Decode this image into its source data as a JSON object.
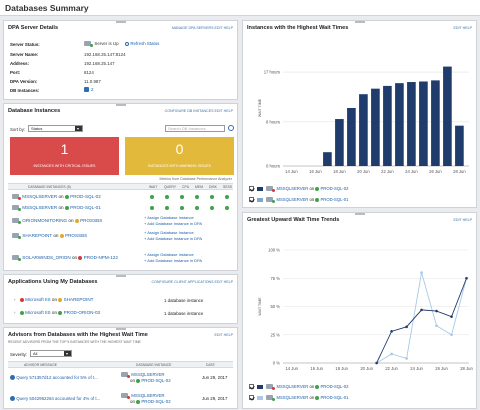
{
  "page": {
    "title": "Databases Summary"
  },
  "dpa": {
    "title": "DPA Server Details",
    "actions": "MANAGE DPA SERVERS  EDIT  HELP",
    "rows": [
      {
        "label": "Server Status:",
        "value": "Server is Up",
        "extra": "Refresh Status"
      },
      {
        "label": "Server Name:",
        "value": "192.168.25.147:8124"
      },
      {
        "label": "Address:",
        "value": "192.168.25.147"
      },
      {
        "label": "Port:",
        "value": "8124"
      },
      {
        "label": "DPA Version:",
        "value": "11.0.987"
      },
      {
        "label": "DB Instances:",
        "value": "2"
      }
    ]
  },
  "instances": {
    "title": "Database Instances",
    "actions": "CONFIGURE DB INSTANCES  EDIT  HELP",
    "sort_label": "Sort by:",
    "sort_value": "Status",
    "search_placeholder": "Search DB Instances",
    "critical": {
      "count": "1",
      "caption": "INSTANCES WITH CRITICAL ISSUES",
      "color": "#d94b4b"
    },
    "warning": {
      "count": "0",
      "caption": "INSTANCES WITH WARNING ISSUES",
      "color": "#e2b93b"
    },
    "metrics_note": "Metrics from Database Performance Analyzer",
    "columns": [
      "DATABASE INSTANCES (5)",
      "WAIT",
      "QUERY",
      "CPU",
      "MEM",
      "DISK",
      "SESS"
    ],
    "rows": [
      {
        "name": "MSSQLSERVER",
        "on": "on",
        "server": "PROD-SQL-02",
        "metrics": true
      },
      {
        "name": "MSSQLSERVER",
        "on": "on",
        "server": "PROD-SQL-01",
        "metrics": true
      },
      {
        "name": "ORIONMONITORING",
        "on": "on",
        "server": "PROSSBS",
        "add1": "+ Assign Database Instance",
        "add2": "+ Add Database Instance in DPA"
      },
      {
        "name": "SHAREPOINT",
        "on": "on",
        "server": "PROSSBS",
        "add1": "+ Assign Database Instance",
        "add2": "+ Add Database Instance in DPA"
      },
      {
        "name": "SOLARWINDS_ORION",
        "on": "on",
        "server": "PROD-NPM-122",
        "add1": "+ Assign Database Instance",
        "add2": "+ Add Database Instance in DPA"
      }
    ]
  },
  "apps": {
    "title": "Applications Using My Databases",
    "actions": "CONFIGURE CLIENT APPLICATIONS  EDIT  HELP",
    "rows": [
      {
        "app": "Microsoft IIS",
        "on": "on",
        "server": "SHAREPOINT",
        "count": "1 database instance"
      },
      {
        "app": "Microsoft IIS",
        "on": "on",
        "server": "PROD-ORION-03",
        "count": "1 database instance"
      }
    ]
  },
  "advisors": {
    "title": "Advisors from Databases with the Highest Wait Time",
    "subtitle": "RECENT ADVISORS FROM THE TOP 5 INSTANCES WITH THE HIGHEST WAIT TIME",
    "actions": "EDIT  HELP",
    "severity_label": "Severity:",
    "severity_value": "All",
    "columns": [
      "ADVISOR MESSAGE",
      "DATABASE INSTANCE",
      "DATE"
    ],
    "rows": [
      {
        "msg": "Query 571357d12 accounted for 5% of t...",
        "db": "MSSQLSERVER",
        "on": "on",
        "server": "PROD-SQL-02",
        "date": "Jun 29, 2017"
      },
      {
        "msg": "Query 5042962264 accounted for 4% of t...",
        "db": "MSSQLSERVER",
        "on": "on",
        "server": "PROD-SQL-02",
        "date": "Jun 29, 2017"
      }
    ]
  },
  "wait_chart": {
    "title": "Instances with the Highest Wait Times",
    "actions": "EDIT  HELP",
    "legend": [
      {
        "name": "MSSQLSERVER",
        "on": "on",
        "server": "PROD-SQL-02",
        "color": "#1f3c6d"
      },
      {
        "name": "MSSQLSERVER",
        "on": "on",
        "server": "PROD-SQL-01",
        "color": "#7aa6cf"
      }
    ]
  },
  "trend_chart": {
    "title": "Greatest Upward Wait Time Trends",
    "actions": "EDIT  HELP",
    "legend": [
      {
        "name": "MSSQLSERVER",
        "on": "on",
        "server": "PROD-SQL-02",
        "color": "#1f3c6d"
      },
      {
        "name": "MSSQLSERVER",
        "on": "on",
        "server": "PROD-SQL-01",
        "color": "#a9c8e6"
      }
    ]
  },
  "chart_data": [
    {
      "type": "bar",
      "title": "Instances with the Highest Wait Times",
      "ylabel": "WAIT TIME",
      "y_ticks": [
        "0 hours",
        "8 hours",
        "17 hours"
      ],
      "ylim": [
        0,
        21
      ],
      "x_ticks": [
        "14 Jun",
        "16 Jun",
        "18 Jun",
        "20 Jun",
        "22 Jun",
        "24 Jun",
        "26 Jun",
        "28 Jun"
      ],
      "series": [
        {
          "name": "MSSQLSERVER on PROD-SQL-02",
          "color": "#1f3c6d",
          "x": [
            17.0,
            18.0,
            19.0,
            20.0,
            21.0,
            22.0,
            23.0,
            24.0,
            25.0,
            26.0,
            27.0,
            28.0
          ],
          "values": [
            2.5,
            8.5,
            10.5,
            13.0,
            14.0,
            14.5,
            15.0,
            15.2,
            15.3,
            15.5,
            18.0,
            7.3
          ]
        }
      ]
    },
    {
      "type": "line",
      "title": "Greatest Upward Wait Time Trends",
      "ylabel": "WAIT TIME",
      "y_ticks": [
        "0 %",
        "25 %",
        "50 %",
        "75 %",
        "100 %"
      ],
      "ylim": [
        0,
        100
      ],
      "x_ticks": [
        "14 Jun",
        "16 Jun",
        "18 Jun",
        "20 Jun",
        "22 Jun",
        "24 Jun",
        "26 Jun",
        "28 Jun"
      ],
      "series": [
        {
          "name": "MSSQLSERVER on PROD-SQL-02",
          "color": "#1f3c6d",
          "x": [
            20.8,
            22.0,
            23.2,
            24.4,
            25.6,
            26.8,
            28.0
          ],
          "values": [
            0,
            28,
            32,
            47,
            46,
            41,
            75
          ]
        },
        {
          "name": "MSSQLSERVER on PROD-SQL-01",
          "color": "#a9c8e6",
          "x": [
            20.8,
            22.0,
            23.2,
            24.4,
            25.6,
            26.8,
            28.0
          ],
          "values": [
            0,
            8,
            4,
            80,
            33,
            25,
            75
          ]
        }
      ]
    }
  ]
}
